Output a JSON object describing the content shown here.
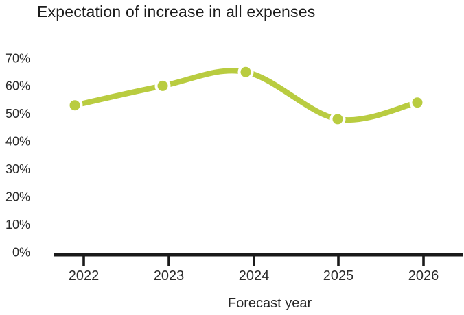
{
  "chart_data": {
    "type": "line",
    "title": "Expectation of increase in all expenses",
    "xlabel": "Forecast year",
    "ylabel": "",
    "x": [
      "2022",
      "2023",
      "2024",
      "2025",
      "2026"
    ],
    "series": [
      {
        "name": "Expectation of increase in all expenses",
        "values": [
          53,
          60,
          65,
          48,
          54
        ]
      }
    ],
    "ylim": [
      0,
      70
    ],
    "yticks": [
      0,
      10,
      20,
      30,
      40,
      50,
      60,
      70
    ],
    "ytick_labels": [
      "0%",
      "10%",
      "20%",
      "30%",
      "40%",
      "50%",
      "60%",
      "70%"
    ],
    "grid": false,
    "legend": false,
    "colors": {
      "line": "#b9cc40",
      "marker": "#b9cc40",
      "marker_halo": "#ffffff",
      "axis": "#1a1a1a",
      "text": "#2b2b2b",
      "title_text": "#1c1c1c",
      "background": "#ffffff"
    },
    "marker_style": "filled-circle-white-halo"
  }
}
